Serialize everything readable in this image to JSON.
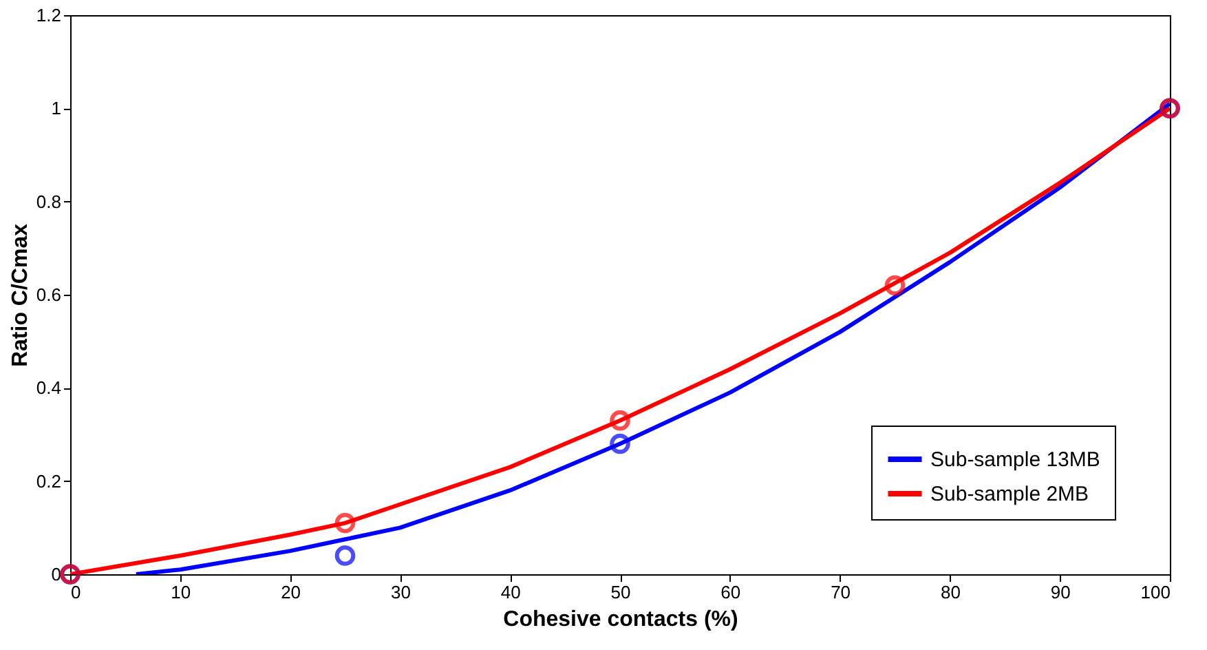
{
  "chart_data": {
    "type": "line",
    "xlabel": "Cohesive contacts (%)",
    "ylabel": "Ratio C/Cmax",
    "xlim": [
      0,
      100
    ],
    "ylim": [
      0,
      1.2
    ],
    "xticks": [
      0,
      10,
      20,
      30,
      40,
      50,
      60,
      70,
      80,
      90,
      100
    ],
    "yticks": [
      0,
      0.2,
      0.4,
      0.6,
      0.8,
      1,
      1.2
    ],
    "grid": false,
    "legend": "bottom right",
    "line_style": "solid",
    "series": [
      {
        "name": "Sub-sample 13MB",
        "color": "#0000ff",
        "marker": "none",
        "x": [
          6,
          10,
          20,
          25,
          30,
          40,
          50,
          60,
          70,
          80,
          90,
          100
        ],
        "values": [
          0,
          0.01,
          0.05,
          0.075,
          0.1,
          0.18,
          0.28,
          0.39,
          0.52,
          0.67,
          0.83,
          1.01
        ]
      },
      {
        "name": "Sub-sample 2MB",
        "color": "#ff0000",
        "marker": "none",
        "x": [
          0,
          10,
          20,
          25,
          30,
          40,
          50,
          60,
          70,
          80,
          90,
          100
        ],
        "values": [
          0,
          0.04,
          0.085,
          0.11,
          0.15,
          0.23,
          0.33,
          0.44,
          0.56,
          0.69,
          0.84,
          1.0
        ]
      },
      {
        "type": "scatter",
        "color": "#0000ff",
        "marker": "circle",
        "x": [
          0,
          25,
          50,
          100
        ],
        "values": [
          0,
          0.04,
          0.28,
          1.0
        ]
      },
      {
        "type": "scatter",
        "color": "#ff0000",
        "marker": "circle",
        "x": [
          0,
          25,
          50,
          75,
          100
        ],
        "values": [
          0,
          0.11,
          0.33,
          0.62,
          1.0
        ]
      }
    ]
  }
}
